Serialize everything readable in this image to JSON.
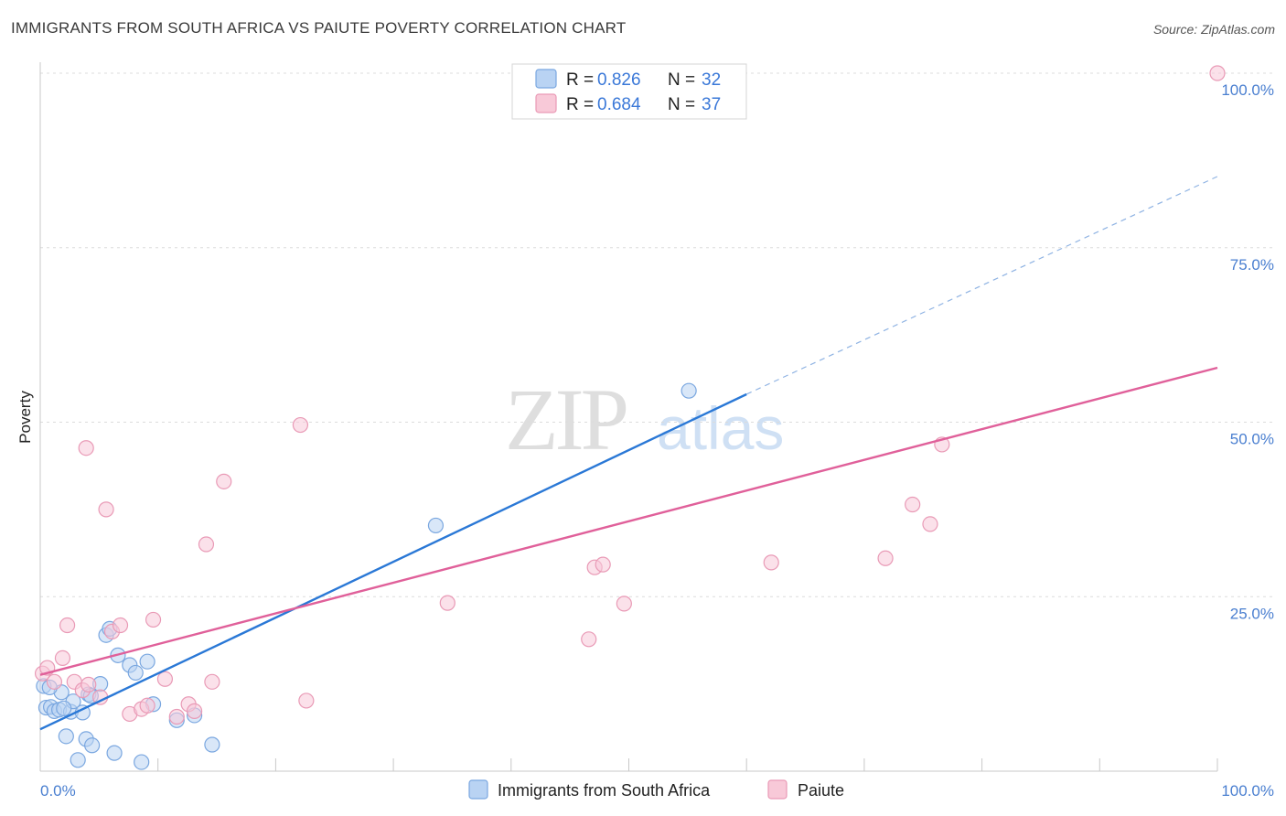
{
  "title": "IMMIGRANTS FROM SOUTH AFRICA VS PAIUTE POVERTY CORRELATION CHART",
  "source": "Source: ZipAtlas.com",
  "watermark": {
    "zip": "ZIP",
    "atlas": "atlas"
  },
  "colors": {
    "blue_fill": "#b9d3f3",
    "blue_stroke": "#7aa7e0",
    "blue_line": "#2a78d6",
    "pink_fill": "#f8c9d8",
    "pink_stroke": "#e99ab6",
    "pink_line": "#e0609a",
    "grid": "#dcdcdc",
    "tick_text": "#4a7fd0"
  },
  "legend": {
    "r_label": "R =",
    "n_label": "N =",
    "blue": {
      "r": "0.826",
      "n": "32"
    },
    "pink": {
      "r": "0.684",
      "n": "37"
    }
  },
  "chart_data": {
    "type": "scatter",
    "title": "IMMIGRANTS FROM SOUTH AFRICA VS PAIUTE POVERTY CORRELATION CHART",
    "xlabel": "",
    "ylabel": "Poverty",
    "xlim": [
      0,
      100
    ],
    "ylim": [
      0,
      100
    ],
    "x_tick_labels": [
      "0.0%",
      "100.0%"
    ],
    "y_tick_labels": [
      "25.0%",
      "50.0%",
      "75.0%",
      "100.0%"
    ],
    "y_tick_values": [
      25,
      50,
      75,
      100
    ],
    "grid": true,
    "series": [
      {
        "name": "Immigrants from South Africa",
        "color": "blue",
        "r": 0.826,
        "n": 32,
        "trend": {
          "x0": 0,
          "y0": 6.0,
          "x1": 60,
          "y1": 54.0,
          "dash_x1": 100,
          "dash_y1": 85.2
        },
        "points": [
          [
            0.3,
            12.2
          ],
          [
            0.5,
            9.1
          ],
          [
            0.9,
            9.2
          ],
          [
            1.2,
            8.6
          ],
          [
            1.6,
            8.8
          ],
          [
            1.8,
            11.3
          ],
          [
            2.2,
            5.0
          ],
          [
            2.6,
            8.5
          ],
          [
            2.8,
            10.0
          ],
          [
            3.2,
            1.6
          ],
          [
            3.6,
            8.4
          ],
          [
            3.9,
            4.6
          ],
          [
            4.1,
            11.0
          ],
          [
            4.4,
            3.7
          ],
          [
            5.1,
            12.5
          ],
          [
            5.6,
            19.5
          ],
          [
            5.9,
            20.4
          ],
          [
            6.3,
            2.6
          ],
          [
            6.6,
            16.6
          ],
          [
            7.6,
            15.2
          ],
          [
            8.1,
            14.1
          ],
          [
            8.6,
            1.3
          ],
          [
            9.1,
            15.7
          ],
          [
            9.6,
            9.6
          ],
          [
            11.6,
            7.3
          ],
          [
            13.1,
            8.0
          ],
          [
            14.6,
            3.8
          ],
          [
            33.6,
            35.2
          ],
          [
            55.1,
            54.5
          ],
          [
            2.0,
            9.0
          ],
          [
            0.8,
            12.0
          ],
          [
            4.3,
            10.8
          ]
        ]
      },
      {
        "name": "Paiute",
        "color": "pink",
        "r": 0.684,
        "n": 37,
        "trend": {
          "x0": 0,
          "y0": 13.8,
          "x1": 100,
          "y1": 57.8
        },
        "points": [
          [
            0.2,
            14.0
          ],
          [
            0.6,
            14.8
          ],
          [
            1.2,
            12.8
          ],
          [
            1.9,
            16.2
          ],
          [
            2.3,
            20.9
          ],
          [
            2.9,
            12.8
          ],
          [
            3.6,
            11.6
          ],
          [
            3.9,
            46.3
          ],
          [
            4.1,
            12.4
          ],
          [
            5.1,
            10.6
          ],
          [
            5.6,
            37.5
          ],
          [
            6.1,
            20.0
          ],
          [
            6.8,
            20.9
          ],
          [
            7.6,
            8.2
          ],
          [
            8.6,
            8.9
          ],
          [
            9.1,
            9.4
          ],
          [
            9.6,
            21.7
          ],
          [
            10.6,
            13.2
          ],
          [
            11.6,
            7.8
          ],
          [
            12.6,
            9.6
          ],
          [
            13.1,
            8.6
          ],
          [
            14.1,
            32.5
          ],
          [
            14.6,
            12.8
          ],
          [
            15.6,
            41.5
          ],
          [
            22.1,
            49.6
          ],
          [
            22.6,
            10.1
          ],
          [
            34.6,
            24.1
          ],
          [
            46.6,
            18.9
          ],
          [
            47.1,
            29.2
          ],
          [
            47.8,
            29.6
          ],
          [
            49.6,
            24.0
          ],
          [
            62.1,
            29.9
          ],
          [
            71.8,
            30.5
          ],
          [
            74.1,
            38.2
          ],
          [
            75.6,
            35.4
          ],
          [
            76.6,
            46.8
          ],
          [
            100.0,
            100.0
          ]
        ]
      }
    ]
  }
}
